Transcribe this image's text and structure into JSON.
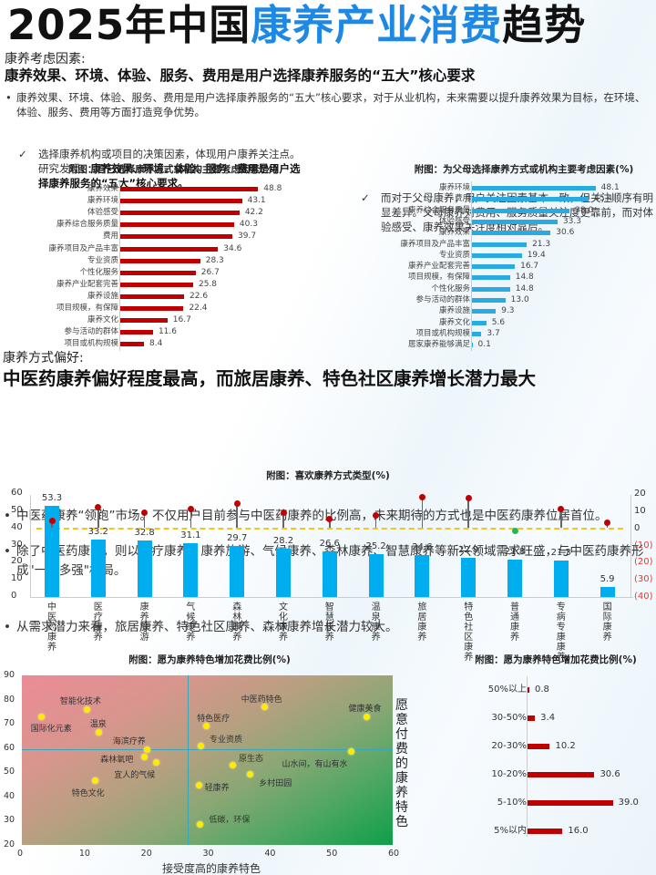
{
  "title": {
    "part1": "2025年中国",
    "accent": "康养产业消费",
    "part2": "趋势"
  },
  "section1": {
    "label": "康养考虑因素:",
    "headline": "康养效果、环境、体验、服务、费用是用户选择康养服务的“五大”核心要求",
    "bullet": "康养效果、环境、体验、服务、费用是用户选择康养服务的“五大”核心要求，对于从业机构，未来需要以提升康养效果为目标，在环境、体验、服务、费用等方面打造竞争优势。",
    "check_left": {
      "icon": "✓",
      "text_plain": "选择康养机构或项目的决策因素，体现用户康养关注点。研究发现，",
      "text_bold": "康养效果、环境、体验、服务、费用是用户选择康养服务的“五大”核心要求。"
    },
    "check_right": {
      "icon": "✓",
      "text": "而对于父母康养，用户关注因素基本一致，但关注顺序有明显差异。父母康养对费用、服务质量关注度更靠前，而对体验感受、康养效果关注度相对靠后。"
    }
  },
  "section2": {
    "label": "康养方式偏好:",
    "headline": "中医药康养偏好程度最高，而旅居康养、特色社区康养增长潜力最大",
    "bullets": [
      "中医药康养“领跑”市场。不仅用户目前参与中医药康养的比例高，未来期待的方式也是中医药康养位居首位。",
      "除了中医药康养，则以医疗康养、康养旅游、气候康养、森林康养、智慧康养等新兴领域需求旺盛，与中医药康养形成\"一超多强\"格局。",
      "从需求潜力来看，旅居康养、特色社区康养、森林康养增长潜力较大。"
    ]
  },
  "colors": {
    "red_bar": "#c00000",
    "blue_bar": "#29abe2",
    "combo_bar": "#00aeef",
    "accent": "#1e88e5",
    "lollipop": "#c00000",
    "lollipop_neg": "#1db954",
    "baseline": "#f5c518"
  },
  "chart_data": [
    {
      "type": "bar",
      "orientation": "horizontal",
      "title": "附图：自己选择康养方式或机构主要考虑因素(%)",
      "categories": [
        "康养效果",
        "康养环境",
        "体验感受",
        "康养综合服务质量",
        "费用",
        "康养项目及产品丰富",
        "专业资质",
        "个性化服务",
        "康养产业配套完善",
        "康养设施",
        "项目规模，有保障",
        "康养文化",
        "参与活动的群体",
        "项目或机构规模"
      ],
      "values": [
        48.8,
        43.1,
        42.2,
        40.3,
        39.7,
        34.6,
        28.3,
        26.7,
        25.8,
        22.6,
        22.4,
        16.7,
        11.6,
        8.4
      ],
      "color": "#c00000"
    },
    {
      "type": "bar",
      "orientation": "horizontal",
      "title": "附图：为父母选择康养方式或机构主要考虑因素(%)",
      "categories": [
        "康养环境",
        "费用",
        "康养综合服务质量",
        "体验感受",
        "康养效果",
        "康养项目及产品丰富",
        "专业资质",
        "康养产业配套完善",
        "项目规模，有保障",
        "个性化服务",
        "参与活动的群体",
        "康养设施",
        "康养文化",
        "项目或机构规模",
        "居家康养能够满足"
      ],
      "values": [
        48.1,
        45.4,
        38.0,
        33.3,
        30.6,
        21.3,
        19.4,
        16.7,
        14.8,
        14.8,
        13.0,
        9.3,
        5.6,
        3.7,
        0.1
      ],
      "color": "#29abe2"
    },
    {
      "type": "bar",
      "title": "附图：喜欢康养方式类型(%)",
      "categories": [
        "中医药康养",
        "医疗康养",
        "康养旅游",
        "气候康养",
        "森林康养",
        "文化康养",
        "智慧康养",
        "温泉康养",
        "旅居康养",
        "特色社区康养",
        "普通康养",
        "专病专康康养",
        "国际康养"
      ],
      "series": [
        {
          "name": "当前参与比例",
          "type": "bar",
          "axis": "left",
          "values": [
            53.3,
            33.2,
            32.8,
            31.1,
            29.7,
            28.2,
            26.6,
            25.2,
            24.6,
            22.9,
            21.8,
            21.3,
            5.9
          ]
        },
        {
          "name": "增长潜力",
          "type": "lollipop",
          "axis": "right",
          "values": [
            4,
            12,
            9,
            11,
            14,
            9,
            5,
            7,
            18,
            17,
            -2,
            11,
            3
          ]
        }
      ],
      "ylim_left": [
        0,
        60
      ],
      "yticks_left": [
        "0",
        "10",
        "20",
        "30",
        "40",
        "50",
        "60"
      ],
      "ylim_right": [
        -40,
        20
      ],
      "yticks_right": [
        "20",
        "10",
        "0",
        "(10)",
        "(20)",
        "(30)",
        "(40)"
      ]
    },
    {
      "type": "scatter",
      "title": "附图：愿为康养特色增加花费比例(%)",
      "xlabel": "接受度高的康养特色",
      "ylabel": "愿意付费的康养特色",
      "xlim": [
        0,
        60
      ],
      "ylim": [
        20,
        90
      ],
      "xticks": [
        "0",
        "10",
        "20",
        "30",
        "40",
        "50",
        "60"
      ],
      "yticks": [
        "90",
        "80",
        "70",
        "60",
        "50",
        "40",
        "30",
        "20"
      ],
      "quadrant_lines": {
        "x": 27,
        "y": 59.5
      },
      "points": [
        {
          "label": "国际化元素",
          "x": 3.2,
          "y": 73
        },
        {
          "label": "智能化技术",
          "x": 10.6,
          "y": 76
        },
        {
          "label": "温泉",
          "x": 12.5,
          "y": 66.5
        },
        {
          "label": "海滨疗养",
          "x": 20.3,
          "y": 59.5
        },
        {
          "label": "森林氧吧",
          "x": 19.8,
          "y": 56.5
        },
        {
          "label": "宜人的气候",
          "x": 21.7,
          "y": 54
        },
        {
          "label": "特色文化",
          "x": 11.9,
          "y": 46.5
        },
        {
          "label": "中医药特色",
          "x": 39.3,
          "y": 77
        },
        {
          "label": "特色医疗",
          "x": 29.8,
          "y": 69
        },
        {
          "label": "专业资质",
          "x": 28.9,
          "y": 61
        },
        {
          "label": "健康美食",
          "x": 55.8,
          "y": 73
        },
        {
          "label": "山水间，有山有水",
          "x": 53.3,
          "y": 58.5
        },
        {
          "label": "原生态",
          "x": 34.2,
          "y": 53
        },
        {
          "label": "乡村田园",
          "x": 36.9,
          "y": 49
        },
        {
          "label": "轻康养",
          "x": 28.7,
          "y": 44.5
        },
        {
          "label": "低碳，环保",
          "x": 28.8,
          "y": 28.5
        }
      ]
    },
    {
      "type": "bar",
      "orientation": "horizontal",
      "title": "附图：愿为康养特色增加花费比例(%)",
      "categories": [
        "50%以上",
        "30-50%",
        "20-30%",
        "10-20%",
        "5-10%",
        "5%以内"
      ],
      "values": [
        0.8,
        3.4,
        10.2,
        30.6,
        39.0,
        16.0
      ],
      "color": "#c00000"
    }
  ]
}
